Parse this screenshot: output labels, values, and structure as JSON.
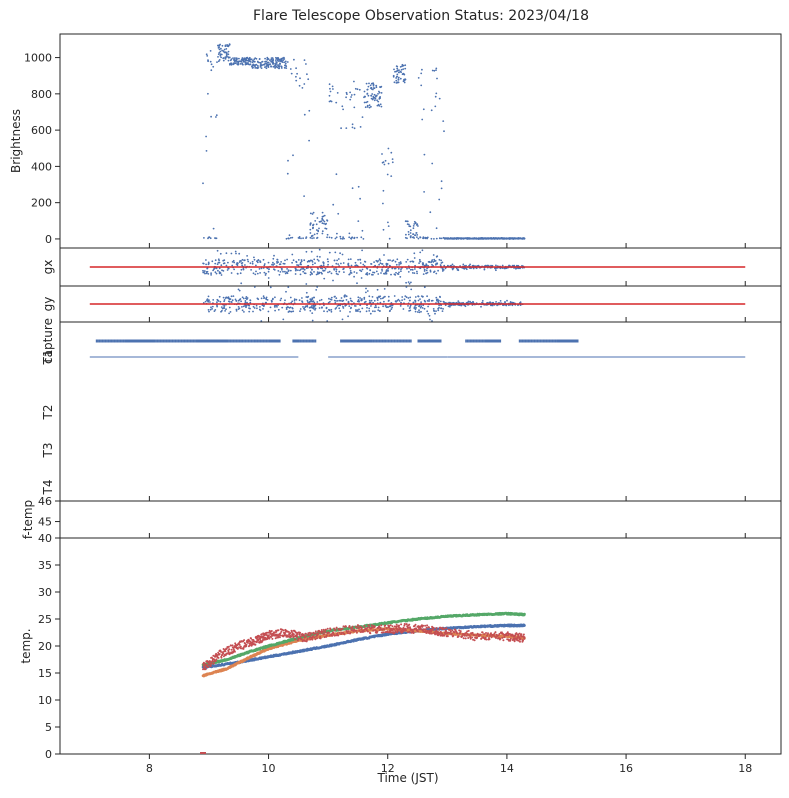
{
  "title": "Flare Telescope Observation Status: 2023/04/18",
  "xlabel": "Time (JST)",
  "chart_data": [
    {
      "type": "scatter",
      "panel": "brightness",
      "ylabel": "Brightness",
      "xlim": [
        6.5,
        18.6
      ],
      "ylim": [
        -50,
        1130
      ],
      "yticks": [
        0,
        200,
        400,
        600,
        800,
        1000
      ],
      "series": [
        {
          "color": "#4c72b0",
          "segments": [
            {
              "x0": 8.9,
              "x1": 9.15,
              "low": 0,
              "high": 1060,
              "density": 0.35
            },
            {
              "x0": 9.15,
              "x1": 9.35,
              "low": 980,
              "high": 1075,
              "density": 0.9
            },
            {
              "x0": 9.35,
              "x1": 9.7,
              "low": 960,
              "high": 1000,
              "density": 0.85
            },
            {
              "x0": 9.7,
              "x1": 10.3,
              "low": 940,
              "high": 1000,
              "density": 0.85
            },
            {
              "x0": 10.3,
              "x1": 10.7,
              "low": 0,
              "high": 990,
              "density": 0.3
            },
            {
              "x0": 10.7,
              "x1": 11.0,
              "low": 0,
              "high": 150,
              "density": 0.6
            },
            {
              "x0": 11.0,
              "x1": 11.6,
              "low": 0,
              "high": 870,
              "density": 0.35
            },
            {
              "x0": 11.6,
              "x1": 11.9,
              "low": 720,
              "high": 860,
              "density": 0.75
            },
            {
              "x0": 11.9,
              "x1": 12.1,
              "low": 0,
              "high": 500,
              "density": 0.3
            },
            {
              "x0": 12.1,
              "x1": 12.3,
              "low": 860,
              "high": 960,
              "density": 0.8
            },
            {
              "x0": 12.3,
              "x1": 12.5,
              "low": 0,
              "high": 100,
              "density": 0.6
            },
            {
              "x0": 12.5,
              "x1": 12.95,
              "low": 0,
              "high": 950,
              "density": 0.35
            },
            {
              "x0": 12.95,
              "x1": 14.3,
              "low": 0,
              "high": 5,
              "density": 1.0
            }
          ]
        }
      ]
    },
    {
      "type": "scatter",
      "panel": "gx",
      "ylabel": "gx",
      "xlim": [
        6.5,
        18.6
      ],
      "series": [
        {
          "color": "#4c72b0",
          "x_range": [
            8.9,
            14.3
          ],
          "note": "guide error x, scattered around reference"
        },
        {
          "color": "#d62728",
          "type": "line",
          "x": [
            7.0,
            18.0
          ],
          "y": [
            0,
            0
          ]
        }
      ]
    },
    {
      "type": "scatter",
      "panel": "gy",
      "ylabel": "gy",
      "xlim": [
        6.5,
        18.6
      ],
      "series": [
        {
          "color": "#4c72b0",
          "x_range": [
            8.9,
            14.3
          ],
          "note": "guide error y, scattered around reference"
        },
        {
          "color": "#d62728",
          "type": "line",
          "x": [
            7.0,
            18.0
          ],
          "y": [
            0,
            0
          ]
        }
      ]
    },
    {
      "type": "scatter",
      "panel": "capture",
      "ylabel_rows": [
        "capture",
        "T1",
        "T2",
        "T3",
        "T4"
      ],
      "xlim": [
        6.5,
        18.6
      ],
      "rows": [
        {
          "row": "capture",
          "color": "#4c72b0",
          "x_spans": [
            [
              7.1,
              10.2
            ],
            [
              10.4,
              10.8
            ],
            [
              11.2,
              12.4
            ],
            [
              12.5,
              12.9
            ],
            [
              13.3,
              13.9
            ],
            [
              14.2,
              15.2
            ]
          ]
        },
        {
          "row": "T1",
          "color": "#4c72b0",
          "x_spans": [
            [
              7.0,
              10.5
            ],
            [
              11.0,
              13.0
            ],
            [
              13.0,
              18.0
            ]
          ]
        }
      ]
    },
    {
      "type": "scatter",
      "panel": "f-temp",
      "ylabel": "f-temp",
      "xlim": [
        6.5,
        18.6
      ],
      "ylim": [
        40,
        46
      ],
      "yticks": [
        45,
        46
      ],
      "series": []
    },
    {
      "type": "line",
      "panel": "temp",
      "ylabel": "temp.",
      "xlim": [
        6.5,
        18.6
      ],
      "ylim": [
        0,
        40
      ],
      "yticks": [
        0,
        5,
        10,
        15,
        20,
        25,
        30,
        35,
        40
      ],
      "xticks": [
        8,
        10,
        12,
        14,
        16,
        18
      ],
      "series": [
        {
          "color": "#4c72b0",
          "x": [
            8.9,
            9.5,
            10.0,
            10.5,
            11.0,
            11.5,
            12.0,
            12.5,
            13.0,
            13.5,
            14.0,
            14.3
          ],
          "y": [
            16.0,
            17.0,
            18.0,
            19.0,
            20.0,
            21.2,
            22.2,
            22.8,
            23.3,
            23.6,
            23.8,
            23.8
          ]
        },
        {
          "color": "#dd8452",
          "x": [
            8.9,
            9.3,
            9.7,
            10.0,
            10.5,
            11.0,
            11.5,
            12.0,
            12.5,
            13.0,
            13.5,
            14.0,
            14.3
          ],
          "y": [
            14.5,
            15.8,
            18.0,
            19.5,
            21.0,
            22.0,
            22.8,
            23.2,
            22.8,
            22.3,
            22.0,
            21.8,
            21.5
          ]
        },
        {
          "color": "#55a868",
          "x": [
            8.9,
            9.3,
            9.7,
            10.0,
            10.5,
            11.0,
            11.5,
            12.0,
            12.5,
            13.0,
            13.5,
            14.0,
            14.3
          ],
          "y": [
            16.5,
            17.5,
            19.0,
            20.0,
            21.5,
            22.8,
            23.5,
            24.3,
            25.0,
            25.5,
            25.8,
            26.0,
            25.8
          ]
        },
        {
          "color": "#c44e52",
          "x": [
            8.9,
            9.2,
            9.5,
            9.8,
            10.0,
            10.3,
            10.6,
            11.0,
            11.5,
            12.0,
            12.3,
            12.7,
            13.0,
            13.5,
            14.0,
            14.3
          ],
          "y": [
            16.0,
            18.5,
            20.0,
            21.0,
            22.0,
            22.5,
            21.5,
            22.5,
            23.2,
            23.0,
            23.3,
            23.0,
            22.5,
            21.8,
            21.8,
            21.5
          ]
        },
        {
          "color": "#c44e52",
          "x": [
            8.85,
            8.95
          ],
          "y": [
            0,
            0
          ]
        }
      ]
    }
  ],
  "colors": {
    "blue": "#4c72b0",
    "orange": "#dd8452",
    "green": "#55a868",
    "red": "#c44e52",
    "refline": "#d62728",
    "axis": "#262626"
  }
}
